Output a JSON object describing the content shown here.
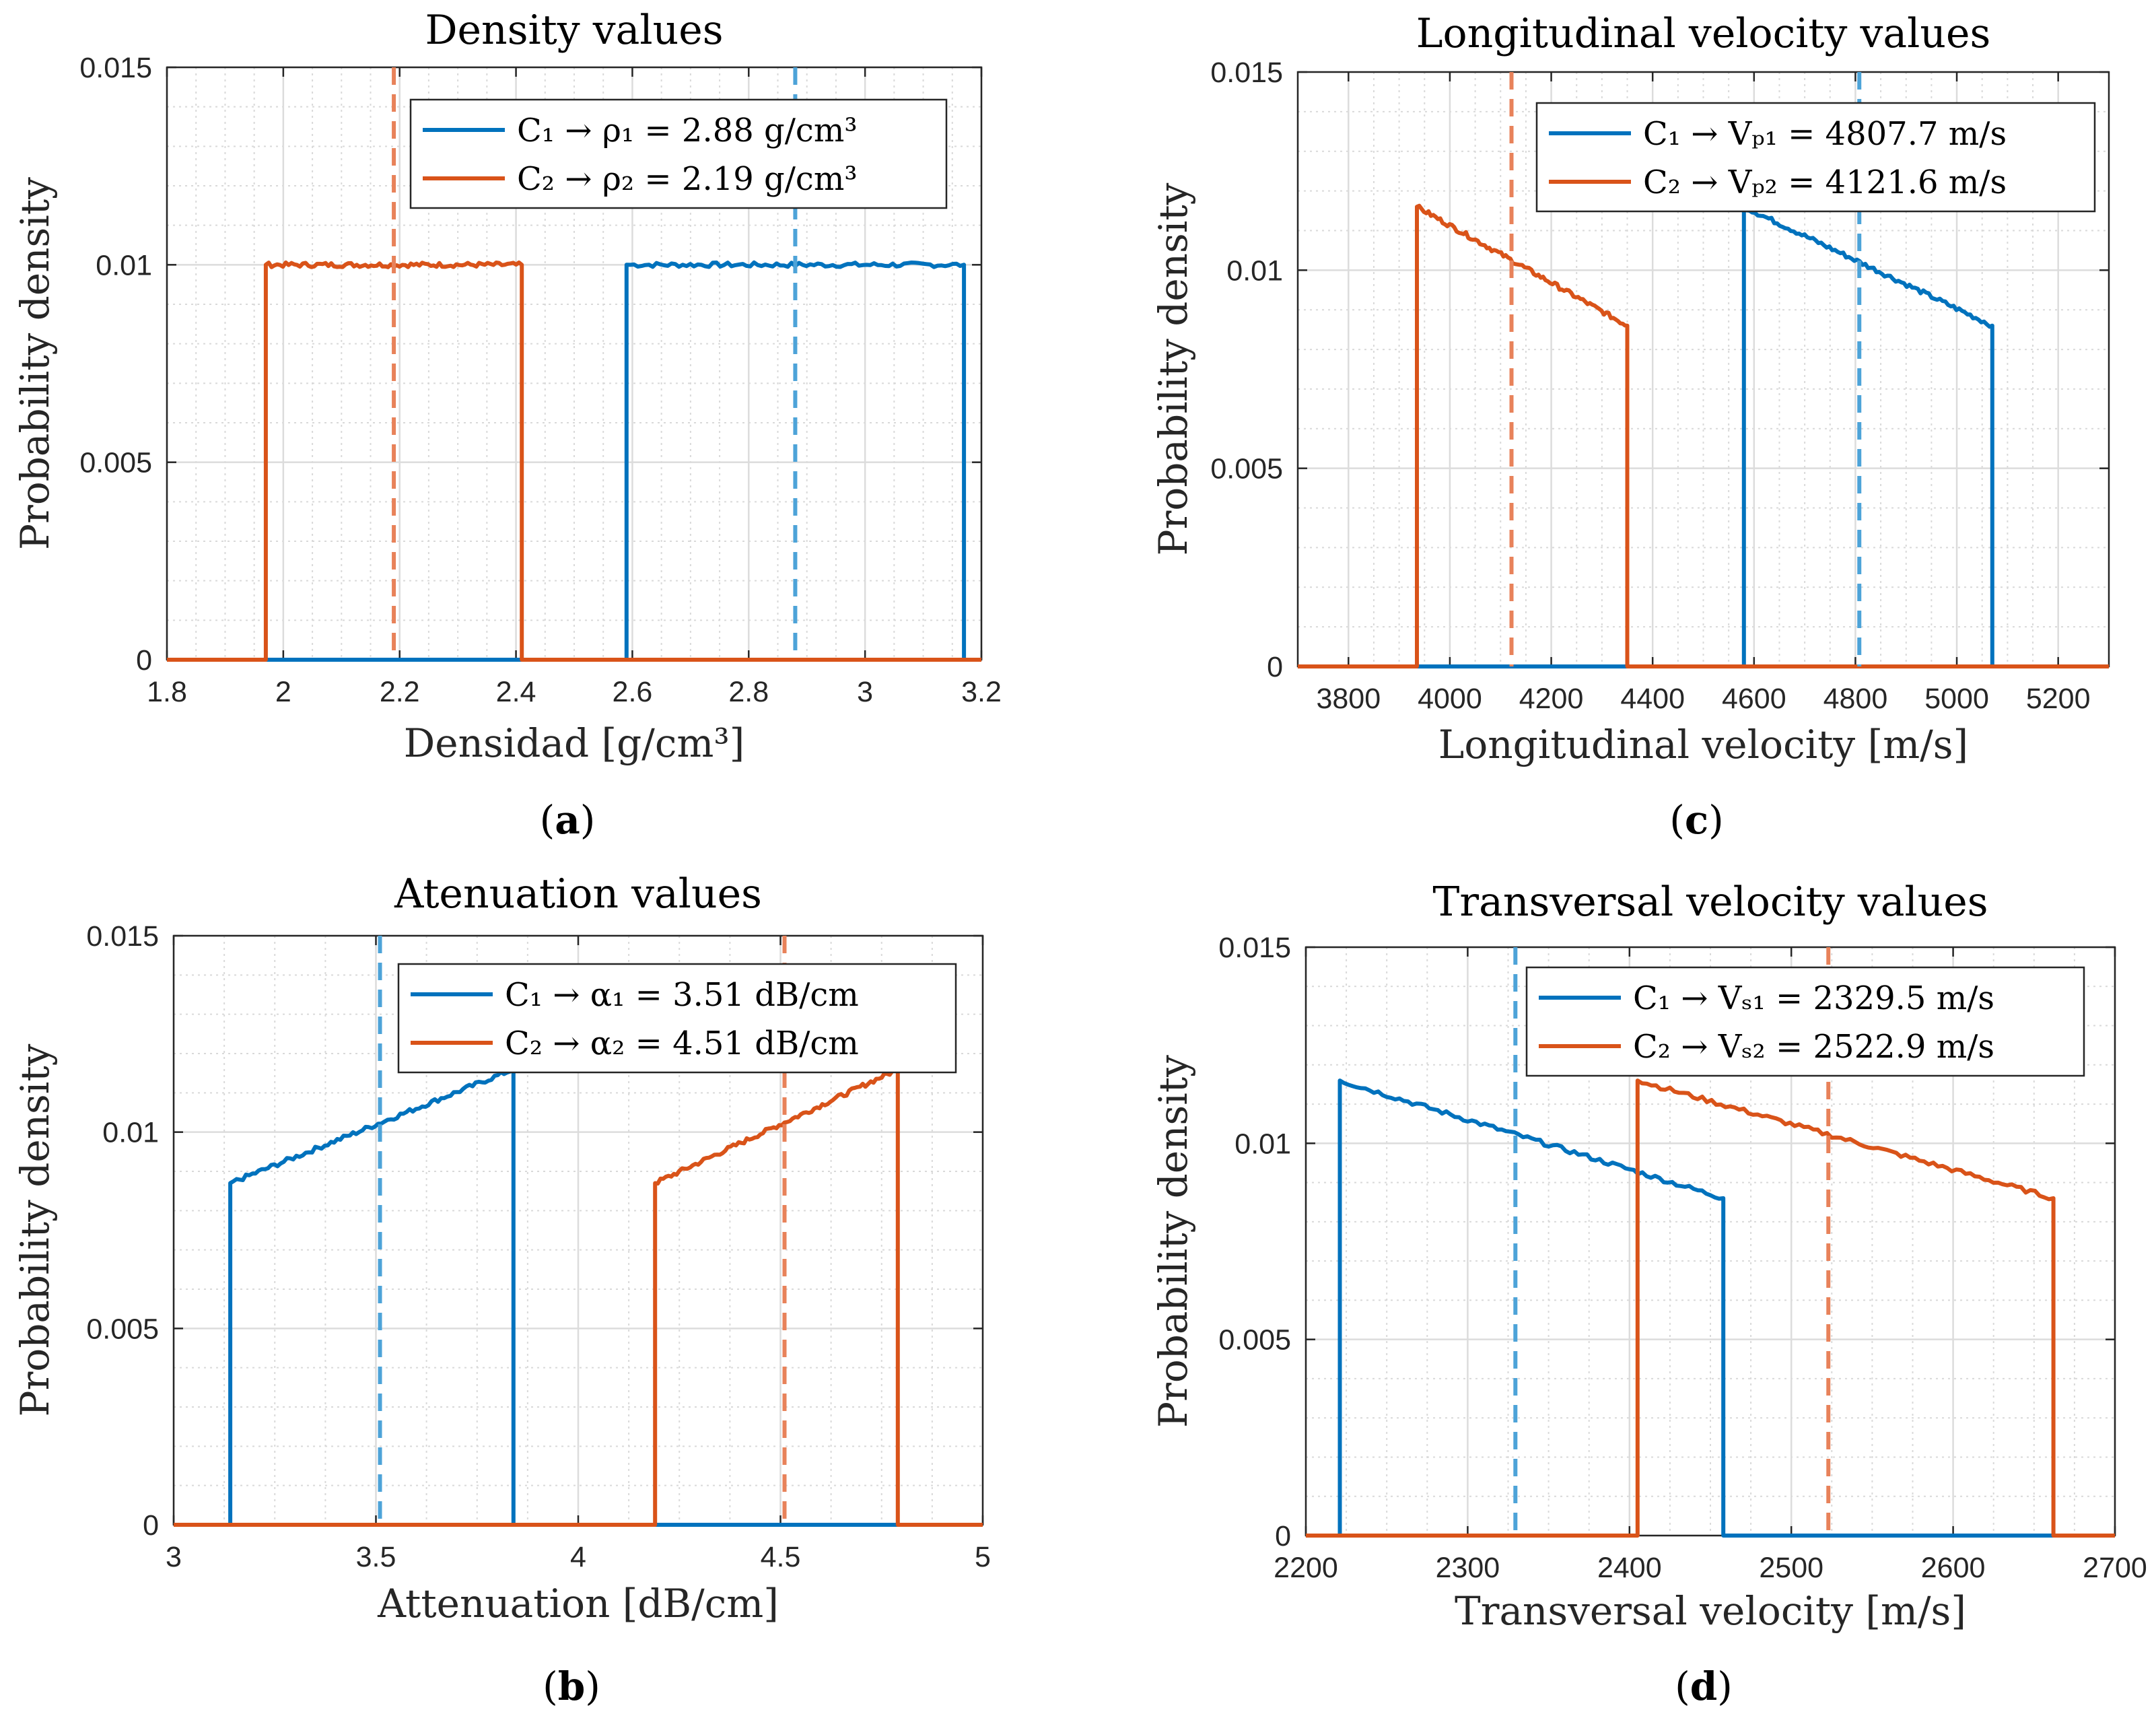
{
  "chart_data": [
    {
      "id": "a",
      "type": "line",
      "panel_label": "a",
      "title": "Density values",
      "xlabel": "Densidad [g/cm³]",
      "ylabel": "Probability density",
      "xlim": [
        1.8,
        3.2
      ],
      "ylim": [
        0,
        0.015
      ],
      "xticks": [
        1.8,
        2,
        2.2,
        2.4,
        2.6,
        2.8,
        3,
        3.2
      ],
      "xtick_labels": [
        "1.8",
        "2",
        "2.2",
        "2.4",
        "2.6",
        "2.8",
        "3",
        "3.2"
      ],
      "yticks": [
        0,
        0.005,
        0.01,
        0.015
      ],
      "ytick_labels": [
        "0",
        "0.005",
        "0.01",
        "0.015"
      ],
      "grid": true,
      "legend_position": "top-right",
      "series": [
        {
          "name": "C1",
          "legend_label": "C₁ → ρ₁ = 2.88 g/cm³",
          "color": "#0072BD",
          "points": [
            [
              1.8,
              0
            ],
            [
              2.59,
              0
            ],
            [
              2.59,
              0.01
            ],
            [
              3.17,
              0.01
            ],
            [
              3.17,
              0
            ]
          ],
          "mean": 2.88
        },
        {
          "name": "C2",
          "legend_label": "C₂ → ρ₂ = 2.19 g/cm³",
          "color": "#D95319",
          "points": [
            [
              1.8,
              0
            ],
            [
              1.97,
              0
            ],
            [
              1.97,
              0.01
            ],
            [
              2.41,
              0.01
            ],
            [
              2.41,
              0
            ],
            [
              3.2,
              0
            ]
          ],
          "mean": 2.19
        }
      ]
    },
    {
      "id": "b",
      "type": "line",
      "panel_label": "b",
      "title": "Atenuation values",
      "xlabel": "Attenuation [dB/cm]",
      "ylabel": "Probability density",
      "xlim": [
        3,
        5
      ],
      "ylim": [
        0,
        0.015
      ],
      "xticks": [
        3,
        3.5,
        4,
        4.5,
        5
      ],
      "xtick_labels": [
        "3",
        "3.5",
        "4",
        "4.5",
        "5"
      ],
      "yticks": [
        0,
        0.005,
        0.01,
        0.015
      ],
      "ytick_labels": [
        "0",
        "0.005",
        "0.01",
        "0.015"
      ],
      "grid": true,
      "legend_position": "top-right",
      "series": [
        {
          "name": "C1",
          "legend_label": "C₁ → α₁ = 3.51 dB/cm",
          "color": "#0072BD",
          "points": [
            [
              3,
              0
            ],
            [
              3.14,
              0
            ],
            [
              3.14,
              0.0087
            ],
            [
              3.84,
              0.0116
            ],
            [
              3.84,
              0
            ],
            [
              5,
              0
            ]
          ],
          "mean": 3.51
        },
        {
          "name": "C2",
          "legend_label": "C₂ → α₂ = 4.51 dB/cm",
          "color": "#D95319",
          "points": [
            [
              3,
              0
            ],
            [
              4.19,
              0
            ],
            [
              4.19,
              0.0087
            ],
            [
              4.79,
              0.0116
            ],
            [
              4.79,
              0
            ],
            [
              5,
              0
            ]
          ],
          "mean": 4.51
        }
      ]
    },
    {
      "id": "c",
      "type": "line",
      "panel_label": "c",
      "title": "Longitudinal velocity values",
      "xlabel": "Longitudinal velocity [m/s]",
      "ylabel": "Probability density",
      "xlim": [
        3700,
        5300
      ],
      "ylim": [
        0,
        0.015
      ],
      "xticks": [
        3800,
        4000,
        4200,
        4400,
        4600,
        4800,
        5000,
        5200
      ],
      "xtick_labels": [
        "3800",
        "4000",
        "4200",
        "4400",
        "4600",
        "4800",
        "5000",
        "5200"
      ],
      "yticks": [
        0,
        0.005,
        0.01,
        0.015
      ],
      "ytick_labels": [
        "0",
        "0.005",
        "0.01",
        "0.015"
      ],
      "grid": true,
      "legend_position": "top-right",
      "series": [
        {
          "name": "C1",
          "legend_label": "C₁ → Vₚ₁ = 4807.7 m/s",
          "color": "#0072BD",
          "points": [
            [
              3700,
              0
            ],
            [
              4580,
              0
            ],
            [
              4580,
              0.0116
            ],
            [
              5070,
              0.0086
            ],
            [
              5070,
              0
            ],
            [
              5300,
              0
            ]
          ],
          "mean": 4807.7
        },
        {
          "name": "C2",
          "legend_label": "C₂ → Vₚ₂ = 4121.6 m/s",
          "color": "#D95319",
          "points": [
            [
              3700,
              0
            ],
            [
              3935,
              0
            ],
            [
              3935,
              0.0116
            ],
            [
              4350,
              0.0086
            ],
            [
              4350,
              0
            ],
            [
              5300,
              0
            ]
          ],
          "mean": 4121.6
        }
      ]
    },
    {
      "id": "d",
      "type": "line",
      "panel_label": "d",
      "title": "Transversal velocity values",
      "xlabel": "Transversal velocity [m/s]",
      "ylabel": "Probability density",
      "xlim": [
        2200,
        2700
      ],
      "ylim": [
        0,
        0.015
      ],
      "xticks": [
        2200,
        2300,
        2400,
        2500,
        2600,
        2700
      ],
      "xtick_labels": [
        "2200",
        "2300",
        "2400",
        "2500",
        "2600",
        "2700"
      ],
      "yticks": [
        0,
        0.005,
        0.01,
        0.015
      ],
      "ytick_labels": [
        "0",
        "0.005",
        "0.01",
        "0.015"
      ],
      "grid": true,
      "legend_position": "top-right",
      "series": [
        {
          "name": "C1",
          "legend_label": "C₁ → Vₛ₁ = 2329.5 m/s",
          "color": "#0072BD",
          "points": [
            [
              2200,
              0
            ],
            [
              2221,
              0
            ],
            [
              2221,
              0.0116
            ],
            [
              2458,
              0.0086
            ],
            [
              2458,
              0
            ],
            [
              2700,
              0
            ]
          ],
          "mean": 2329.5
        },
        {
          "name": "C2",
          "legend_label": "C₂ → Vₛ₂ = 2522.9 m/s",
          "color": "#D95319",
          "points": [
            [
              2200,
              0
            ],
            [
              2405,
              0
            ],
            [
              2405,
              0.0116
            ],
            [
              2662,
              0.0086
            ],
            [
              2662,
              0
            ],
            [
              2700,
              0
            ]
          ],
          "mean": 2522.9
        }
      ]
    }
  ]
}
